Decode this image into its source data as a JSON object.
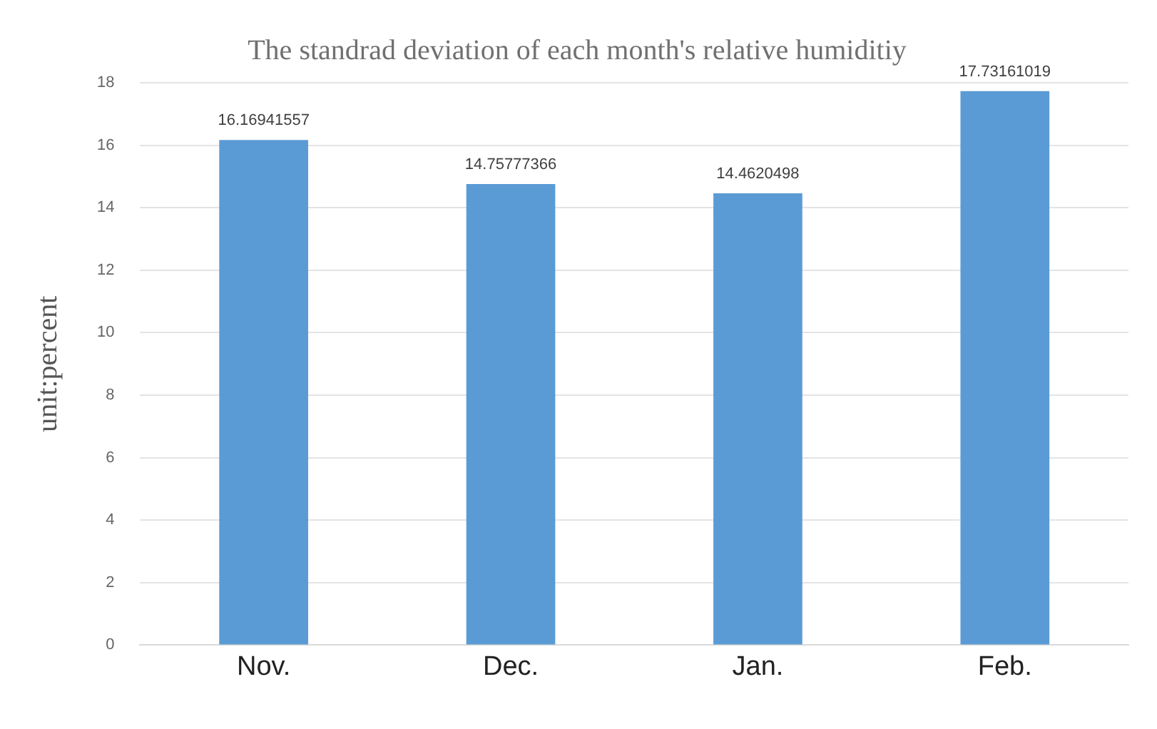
{
  "chart_data": {
    "type": "bar",
    "title": "The standrad deviation of each month's relative humiditiy",
    "ylabel": "unit:percent",
    "categories": [
      "Nov.",
      "Dec.",
      "Jan.",
      "Feb."
    ],
    "values": [
      16.16941557,
      14.75777366,
      14.4620498,
      17.73161019
    ],
    "color": "#5b9bd5",
    "ylim": [
      0,
      18
    ],
    "yticks": [
      0,
      2,
      4,
      6,
      8,
      10,
      12,
      14,
      16,
      18
    ],
    "grid": "y",
    "data_labels": true
  }
}
